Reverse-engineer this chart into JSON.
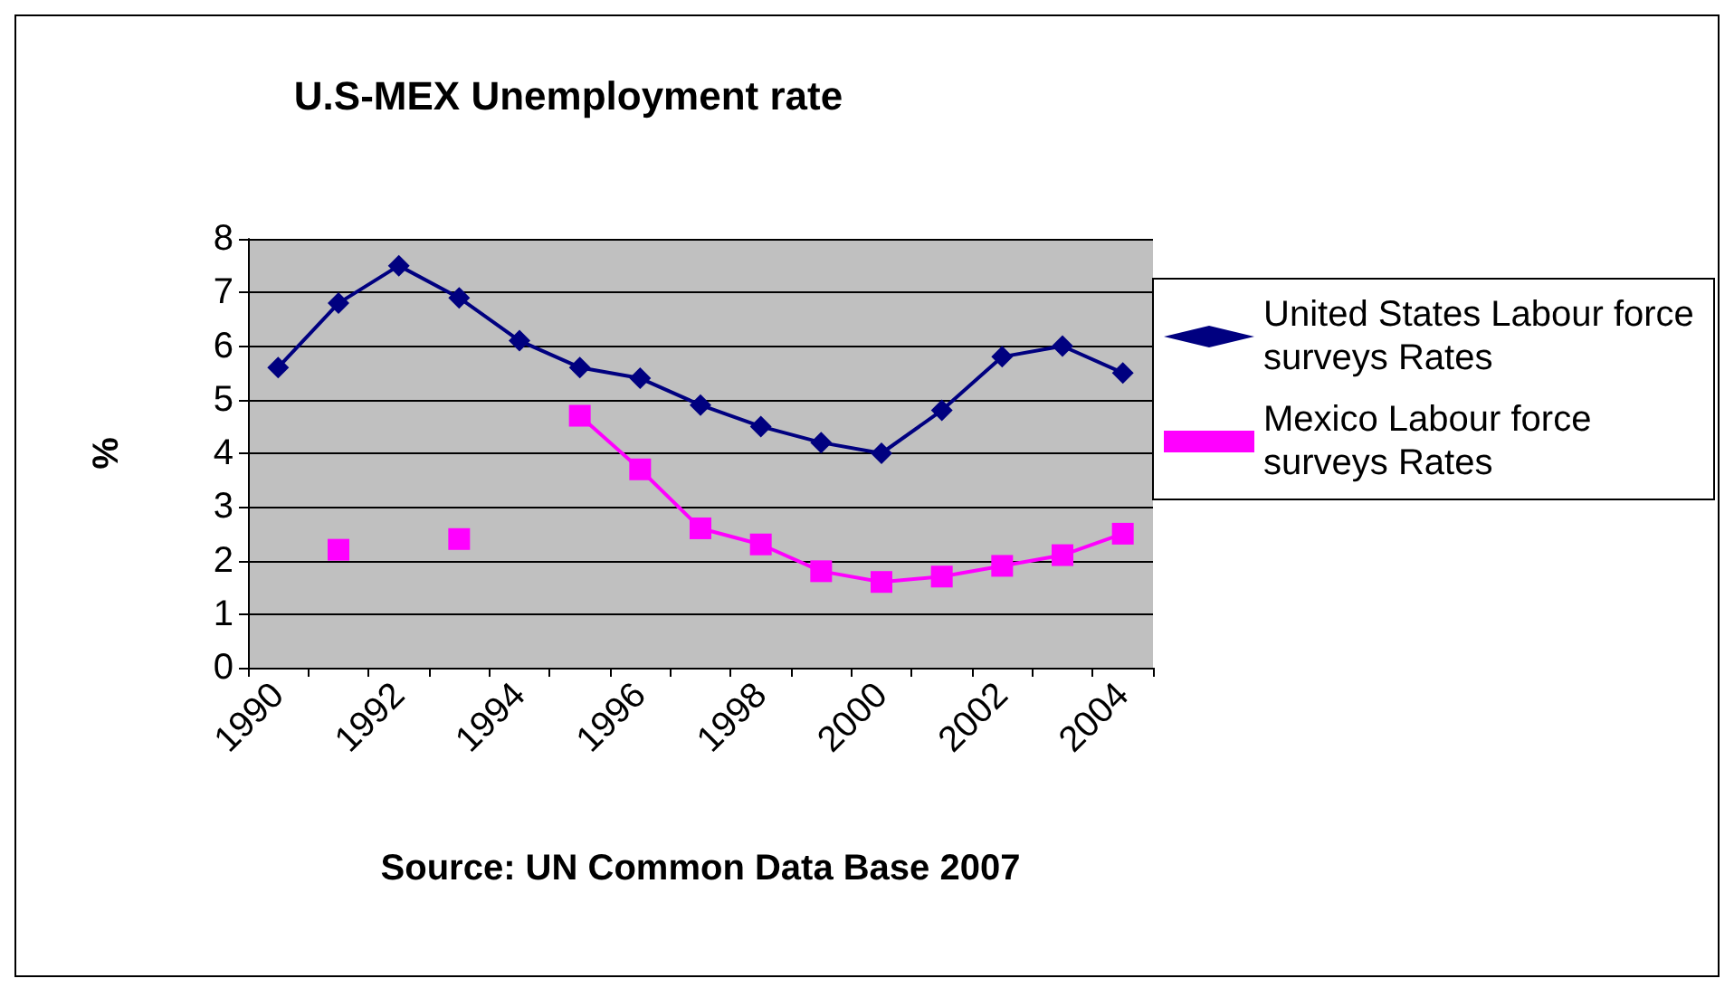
{
  "chart_data": {
    "type": "line",
    "title": "U.S-MEX Unemployment rate",
    "ylabel": "%",
    "xlabel": "Source: UN Common Data Base 2007",
    "categories": [
      "1990",
      null,
      "1992",
      null,
      "1994",
      null,
      "1996",
      null,
      "1998",
      null,
      "2000",
      null,
      "2002",
      null,
      "2004"
    ],
    "series": [
      {
        "name": "United States Labour force surveys Rates",
        "color": "#000080",
        "marker": "diamond",
        "values": [
          5.6,
          6.8,
          7.5,
          6.9,
          6.1,
          5.6,
          5.4,
          4.9,
          4.5,
          4.2,
          4.0,
          4.8,
          5.8,
          6.0,
          5.5
        ]
      },
      {
        "name": "Mexico Labour force surveys Rates",
        "color": "#ff00ff",
        "marker": "square",
        "values": [
          null,
          2.2,
          null,
          2.4,
          null,
          4.7,
          3.7,
          2.6,
          2.3,
          1.8,
          1.6,
          1.7,
          1.9,
          2.1,
          2.5
        ]
      }
    ],
    "ylim": [
      0,
      8
    ],
    "yticks": [
      0,
      1,
      2,
      3,
      4,
      5,
      6,
      7,
      8
    ],
    "grid": "y",
    "legend": "right"
  }
}
